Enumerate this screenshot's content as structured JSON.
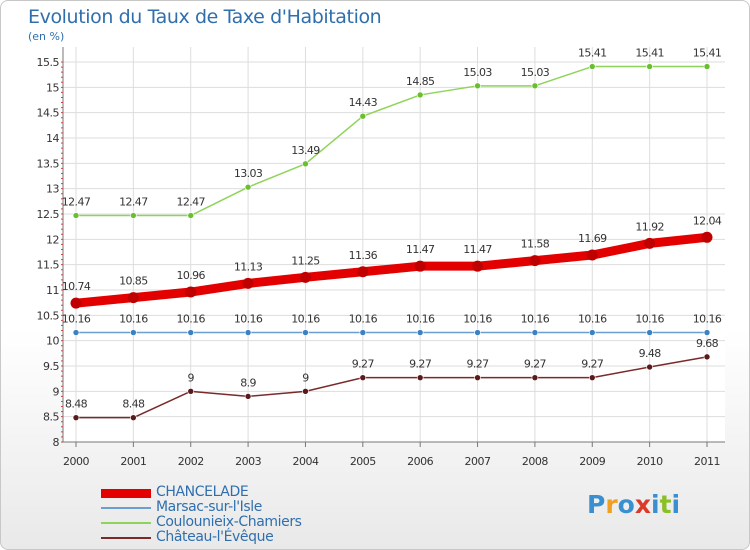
{
  "title": "Evolution du Taux de Taxe d'Habitation",
  "unit": "(en %)",
  "brand": {
    "text": "Proxiti",
    "colors": [
      "#3a8fd1",
      "#f0a020",
      "#3a8fd1",
      "#d93a2a",
      "#3a8fd1",
      "#8cbf26",
      "#3a8fd1"
    ]
  },
  "chart_data": {
    "type": "line",
    "x": [
      2000,
      2001,
      2002,
      2003,
      2004,
      2005,
      2006,
      2007,
      2008,
      2009,
      2010,
      2011
    ],
    "ylim": [
      8,
      15.5
    ],
    "yticks": [
      8,
      8.5,
      9,
      9.5,
      10,
      10.5,
      11,
      11.5,
      12,
      12.5,
      13,
      13.5,
      14,
      14.5,
      15,
      15.5
    ],
    "grid": true,
    "legend": "bottom-left",
    "series": [
      {
        "name": "CHANCELADE",
        "color": "#e30000",
        "values": [
          10.74,
          10.85,
          10.96,
          11.13,
          11.25,
          11.36,
          11.47,
          11.47,
          11.58,
          11.69,
          11.92,
          12.04
        ],
        "labels": [
          "10.74",
          "10.85",
          "10.96",
          "11.13",
          "11.25",
          "11.36",
          "11.47",
          "11.47",
          "11.58",
          "11.69",
          "11.92",
          "12.04"
        ]
      },
      {
        "name": "Marsac-sur-l'Isle",
        "color": "#6a9fcf",
        "values": [
          10.16,
          10.16,
          10.16,
          10.16,
          10.16,
          10.16,
          10.16,
          10.16,
          10.16,
          10.16,
          10.16,
          10.16
        ],
        "labels": [
          "10.16",
          "10.16",
          "10.16",
          "10.16",
          "10.16",
          "10.16",
          "10.16",
          "10.16",
          "10.16",
          "10.16",
          "10.16",
          "10.16"
        ]
      },
      {
        "name": "Coulounieix-Chamiers",
        "color": "#8fd45a",
        "values": [
          12.47,
          12.47,
          12.47,
          13.03,
          13.49,
          14.43,
          14.85,
          15.03,
          15.03,
          15.41,
          15.41,
          15.41
        ],
        "labels": [
          "12.47",
          "12.47",
          "12.47",
          "13.03",
          "13.49",
          "14.43",
          "14.85",
          "15.03",
          "15.03",
          "15.41",
          "15.41",
          "15.41"
        ]
      },
      {
        "name": "Château-l'Évêque",
        "color": "#7a2a2a",
        "values": [
          8.48,
          8.48,
          9,
          8.9,
          9,
          9.27,
          9.27,
          9.27,
          9.27,
          9.27,
          9.48,
          9.68
        ],
        "labels": [
          "8.48",
          "8.48",
          "9",
          "8.9",
          "9",
          "9.27",
          "9.27",
          "9.27",
          "9.27",
          "9.27",
          "9.48",
          "9.68"
        ]
      }
    ]
  }
}
